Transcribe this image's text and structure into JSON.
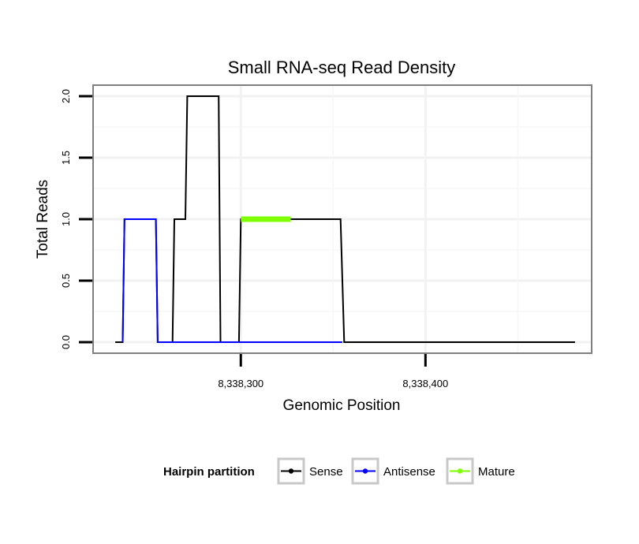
{
  "chart_data": {
    "type": "line",
    "title": "Small RNA-seq Read Density",
    "xlabel": "Genomic Position",
    "ylabel": "Total Reads",
    "xlim": [
      8338220,
      8338490
    ],
    "ylim": [
      -0.09,
      2.09
    ],
    "x_ticks": [
      8338300,
      8338400
    ],
    "x_tick_labels": [
      "8,338,300",
      "8,338,400"
    ],
    "y_ticks": [
      0,
      0.5,
      1,
      1.5,
      2
    ],
    "y_tick_labels": [
      "0.0",
      "0.5",
      "1.0",
      "1.5",
      "2.0"
    ],
    "grid": true,
    "legend": {
      "title": "Hairpin partition",
      "position": "bottom",
      "entries": [
        "Sense",
        "Antisense",
        "Mature"
      ]
    },
    "series": [
      {
        "name": "Sense",
        "color": "#000000",
        "x": [
          8338232,
          8338236,
          8338237,
          8338254,
          8338255,
          8338263,
          8338264,
          8338270,
          8338271,
          8338288,
          8338289,
          8338299,
          8338300,
          8338354,
          8338356,
          8338481
        ],
        "y": [
          0,
          0,
          1,
          1,
          0,
          0,
          1,
          1,
          2,
          2,
          0,
          0,
          1,
          1,
          0,
          0
        ]
      },
      {
        "name": "Antisense",
        "color": "#0000FF",
        "x": [
          8338236,
          8338237,
          8338254,
          8338255,
          8338355
        ],
        "y": [
          0,
          1,
          1,
          0,
          0
        ]
      },
      {
        "name": "Mature",
        "color": "#7FFF00",
        "x": [
          8338300,
          8338327
        ],
        "y": [
          1,
          1
        ]
      }
    ]
  }
}
